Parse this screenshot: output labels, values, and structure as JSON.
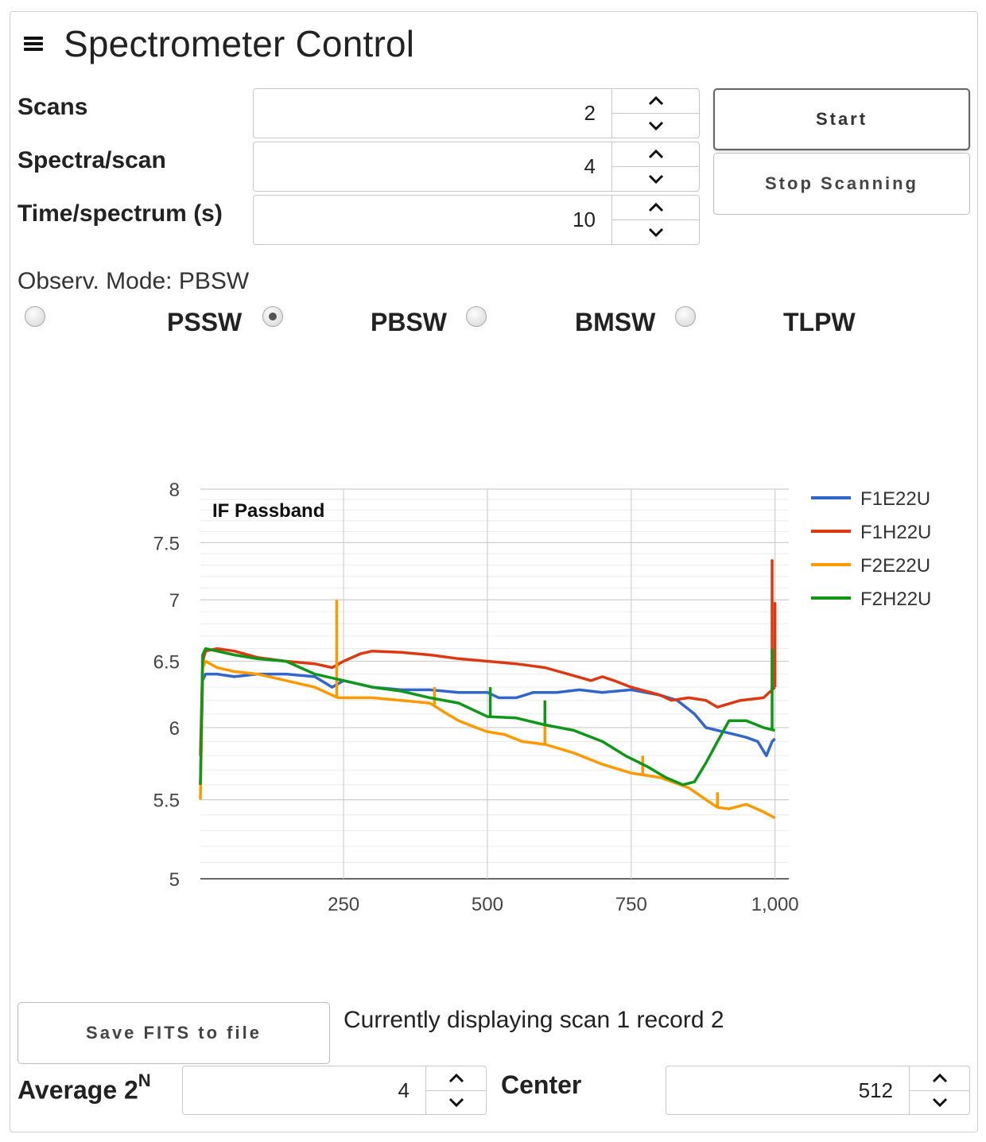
{
  "header": {
    "title": "Spectrometer Control",
    "menu_icon": "hamburger-icon"
  },
  "controls": {
    "scans": {
      "label": "Scans",
      "value": "2"
    },
    "spectra_per_scan": {
      "label": "Spectra/scan",
      "value": "4"
    },
    "time_per_spectrum": {
      "label": "Time/spectrum (s)",
      "value": "10"
    },
    "start_label": "Start",
    "stop_label": "Stop Scanning"
  },
  "mode": {
    "label": "Observ. Mode: PBSW",
    "options": [
      {
        "label": "PSSW",
        "checked": false
      },
      {
        "label": "PBSW",
        "checked": true
      },
      {
        "label": "BMSW",
        "checked": false
      },
      {
        "label": "TLPW",
        "checked": false
      }
    ]
  },
  "chart_data": {
    "type": "line",
    "title": "IF Passband",
    "xlabel": "",
    "ylabel": "",
    "xlim": [
      1,
      1024
    ],
    "ylim": [
      5,
      8
    ],
    "y_scale": "log",
    "y_ticks": [
      "5",
      "5.5",
      "6",
      "6.5",
      "7",
      "7.5",
      "8"
    ],
    "x_ticks": [
      "250",
      "500",
      "750",
      "1,000"
    ],
    "x_tick_values": [
      250,
      500,
      750,
      1000
    ],
    "legend_position": "right",
    "grid": true,
    "series": [
      {
        "name": "F1E22U",
        "color": "#3366cc",
        "points": [
          [
            1,
            5.6
          ],
          [
            5,
            6.35
          ],
          [
            10,
            6.4
          ],
          [
            30,
            6.4
          ],
          [
            60,
            6.38
          ],
          [
            100,
            6.4
          ],
          [
            150,
            6.4
          ],
          [
            200,
            6.38
          ],
          [
            230,
            6.3
          ],
          [
            250,
            6.35
          ],
          [
            300,
            6.3
          ],
          [
            350,
            6.28
          ],
          [
            400,
            6.28
          ],
          [
            450,
            6.26
          ],
          [
            500,
            6.26
          ],
          [
            520,
            6.22
          ],
          [
            550,
            6.22
          ],
          [
            580,
            6.26
          ],
          [
            620,
            6.26
          ],
          [
            660,
            6.28
          ],
          [
            700,
            6.26
          ],
          [
            750,
            6.28
          ],
          [
            800,
            6.24
          ],
          [
            830,
            6.2
          ],
          [
            860,
            6.1
          ],
          [
            880,
            6.0
          ],
          [
            900,
            5.98
          ],
          [
            930,
            5.95
          ],
          [
            950,
            5.93
          ],
          [
            970,
            5.9
          ],
          [
            985,
            5.8
          ],
          [
            995,
            5.9
          ],
          [
            1000,
            5.92
          ]
        ]
      },
      {
        "name": "F1H22U",
        "color": "#dc3912",
        "points": [
          [
            1,
            5.8
          ],
          [
            5,
            6.5
          ],
          [
            10,
            6.58
          ],
          [
            30,
            6.6
          ],
          [
            60,
            6.58
          ],
          [
            100,
            6.53
          ],
          [
            150,
            6.5
          ],
          [
            200,
            6.48
          ],
          [
            230,
            6.45
          ],
          [
            250,
            6.5
          ],
          [
            280,
            6.56
          ],
          [
            300,
            6.58
          ],
          [
            350,
            6.57
          ],
          [
            400,
            6.55
          ],
          [
            450,
            6.52
          ],
          [
            500,
            6.5
          ],
          [
            550,
            6.48
          ],
          [
            600,
            6.45
          ],
          [
            640,
            6.4
          ],
          [
            680,
            6.35
          ],
          [
            700,
            6.38
          ],
          [
            720,
            6.35
          ],
          [
            750,
            6.3
          ],
          [
            800,
            6.24
          ],
          [
            820,
            6.2
          ],
          [
            850,
            6.22
          ],
          [
            880,
            6.2
          ],
          [
            900,
            6.15
          ],
          [
            940,
            6.2
          ],
          [
            980,
            6.22
          ],
          [
            1000,
            6.3
          ]
        ],
        "spikes": [
          [
            995,
            7.35
          ],
          [
            1000,
            6.98
          ]
        ]
      },
      {
        "name": "F2E22U",
        "color": "#ff9900",
        "points": [
          [
            1,
            5.5
          ],
          [
            5,
            6.45
          ],
          [
            10,
            6.5
          ],
          [
            30,
            6.45
          ],
          [
            60,
            6.42
          ],
          [
            100,
            6.4
          ],
          [
            150,
            6.35
          ],
          [
            200,
            6.3
          ],
          [
            225,
            6.25
          ],
          [
            240,
            6.22
          ],
          [
            270,
            6.22
          ],
          [
            300,
            6.22
          ],
          [
            350,
            6.2
          ],
          [
            400,
            6.18
          ],
          [
            430,
            6.1
          ],
          [
            450,
            6.05
          ],
          [
            480,
            6.0
          ],
          [
            500,
            5.97
          ],
          [
            530,
            5.95
          ],
          [
            560,
            5.9
          ],
          [
            600,
            5.88
          ],
          [
            650,
            5.82
          ],
          [
            700,
            5.74
          ],
          [
            750,
            5.68
          ],
          [
            800,
            5.65
          ],
          [
            850,
            5.58
          ],
          [
            880,
            5.5
          ],
          [
            900,
            5.45
          ],
          [
            920,
            5.44
          ],
          [
            950,
            5.47
          ],
          [
            980,
            5.42
          ],
          [
            1000,
            5.38
          ]
        ],
        "spikes": [
          [
            238,
            7.0
          ],
          [
            408,
            6.3
          ],
          [
            600,
            6.2
          ],
          [
            770,
            5.8
          ],
          [
            900,
            5.55
          ]
        ]
      },
      {
        "name": "F2H22U",
        "color": "#109618",
        "points": [
          [
            1,
            5.6
          ],
          [
            5,
            6.55
          ],
          [
            10,
            6.6
          ],
          [
            30,
            6.58
          ],
          [
            60,
            6.55
          ],
          [
            100,
            6.52
          ],
          [
            150,
            6.5
          ],
          [
            200,
            6.4
          ],
          [
            250,
            6.35
          ],
          [
            300,
            6.3
          ],
          [
            350,
            6.27
          ],
          [
            400,
            6.22
          ],
          [
            450,
            6.18
          ],
          [
            480,
            6.12
          ],
          [
            500,
            6.08
          ],
          [
            550,
            6.07
          ],
          [
            600,
            6.02
          ],
          [
            650,
            5.98
          ],
          [
            700,
            5.9
          ],
          [
            740,
            5.8
          ],
          [
            780,
            5.72
          ],
          [
            810,
            5.65
          ],
          [
            840,
            5.6
          ],
          [
            860,
            5.62
          ],
          [
            880,
            5.75
          ],
          [
            900,
            5.9
          ],
          [
            920,
            6.05
          ],
          [
            950,
            6.05
          ],
          [
            980,
            6.0
          ],
          [
            1000,
            5.98
          ]
        ],
        "spikes": [
          [
            505,
            6.3
          ],
          [
            600,
            6.2
          ],
          [
            995,
            6.6
          ]
        ]
      }
    ]
  },
  "status": {
    "text": "Currently displaying scan 1 record 2"
  },
  "save_label": "Save FITS to file",
  "average": {
    "label_base": "Average 2",
    "label_sup": "N",
    "value": "4"
  },
  "center": {
    "label": "Center",
    "value": "512"
  }
}
